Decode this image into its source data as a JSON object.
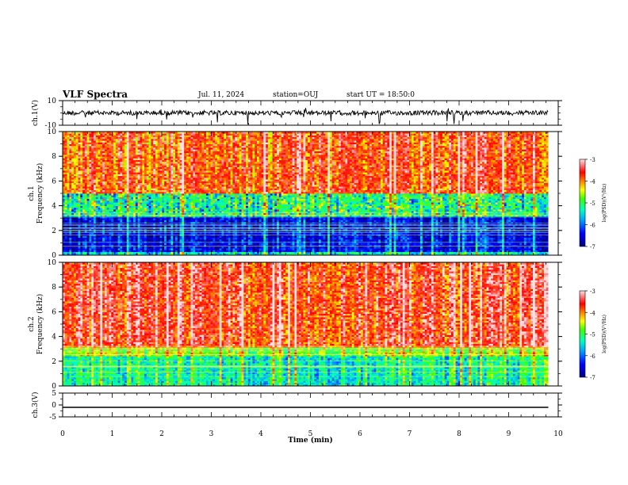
{
  "header": {
    "title": "VLF Spectra",
    "date": "Jul. 11, 2024",
    "station": "station=OUJ",
    "start": "start UT = 18:50:0"
  },
  "chart_data": [
    {
      "type": "line",
      "panel": "waveform-ch1",
      "ylabel": "ch.1(V)",
      "ylim": [
        -10,
        10
      ],
      "ytick_labels": [
        "10",
        "-10"
      ],
      "series": [
        {
          "values_description_level": 0,
          "x": [
            0,
            9.8
          ],
          "y": [
            0,
            0
          ]
        }
      ],
      "trace_level": 0.0,
      "trace_range": [
        -10,
        10
      ],
      "color": "#000000"
    },
    {
      "type": "heatmap",
      "panel": "spectrogram-ch1",
      "ylabel": "ch.1 Frequency (kHz)",
      "ylim": [
        0,
        10
      ],
      "ytick_labels": [
        "0",
        "2",
        "4",
        "6",
        "8",
        "10"
      ],
      "x_extent": [
        0,
        9.8
      ],
      "frequency_bands_khz": [
        [
          0,
          0.3
        ],
        [
          0.3,
          3.2
        ],
        [
          3.2,
          5
        ],
        [
          5,
          10
        ]
      ],
      "band_levels": [
        -5.5,
        -6.5,
        -5.2,
        -3.8
      ],
      "colorbar": {
        "label": "log(PSD)(V²/Hz)",
        "range": [
          -7,
          -3
        ],
        "tick_labels": [
          "-3",
          "-4",
          "-5",
          "-6",
          "-7"
        ]
      }
    },
    {
      "type": "heatmap",
      "panel": "spectrogram-ch2",
      "ylabel": "ch.2 Frequency (kHz)",
      "ylim": [
        0,
        10
      ],
      "ytick_labels": [
        "0",
        "2",
        "4",
        "6",
        "8",
        "10"
      ],
      "x_extent": [
        0,
        9.8
      ],
      "frequency_bands_khz": [
        [
          0,
          2.5
        ],
        [
          2.5,
          3.2
        ],
        [
          3.2,
          10
        ]
      ],
      "band_levels": [
        -5.3,
        -4.6,
        -3.6
      ],
      "colorbar": {
        "label": "log(PSD)(V²/Hz)",
        "range": [
          -7,
          -3
        ],
        "tick_labels": [
          "-3",
          "-4",
          "-5",
          "-6",
          "-7"
        ]
      }
    },
    {
      "type": "line",
      "panel": "waveform-ch3",
      "ylabel": "ch.3(V)",
      "ylim": [
        -5,
        5
      ],
      "ytick_labels": [
        "5",
        "0",
        "-5"
      ],
      "x": [
        0,
        9.8
      ],
      "y": [
        -1.0,
        -1.0
      ],
      "color": "#000000"
    }
  ],
  "xaxis": {
    "label": "Time (min)",
    "range": [
      0,
      10
    ],
    "tick_labels": [
      "0",
      "1",
      "2",
      "3",
      "4",
      "5",
      "6",
      "7",
      "8",
      "9",
      "10"
    ]
  },
  "colors": {
    "background": "#ffffff",
    "axes": "#000000"
  }
}
